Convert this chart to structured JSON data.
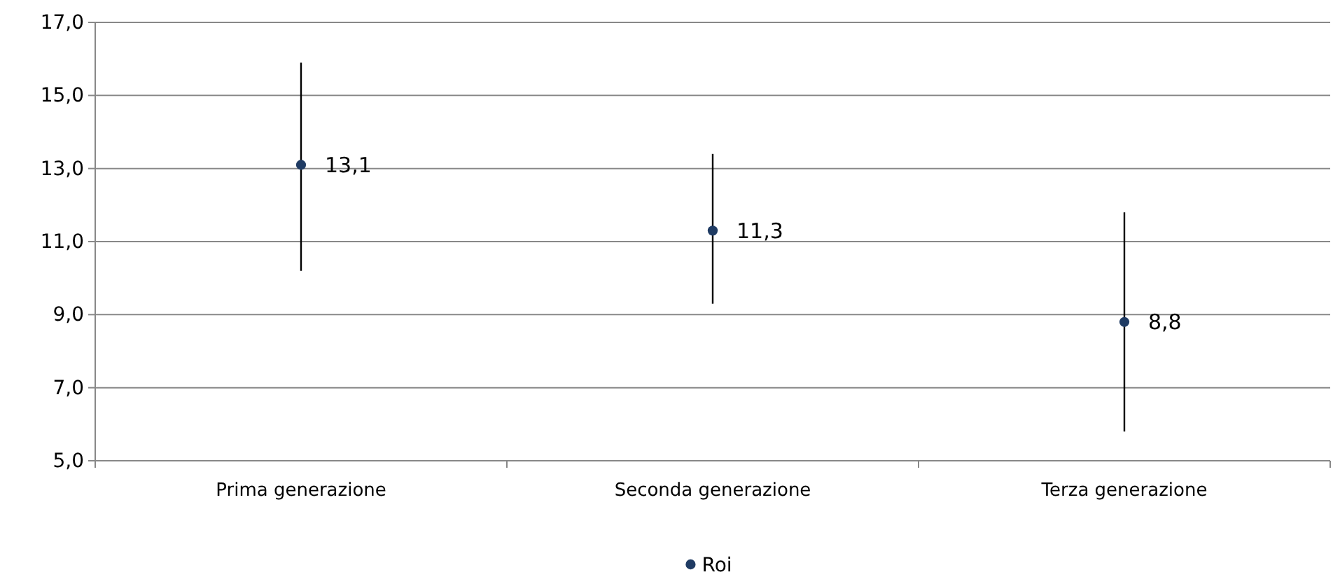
{
  "chart_data": {
    "type": "scatter",
    "categories": [
      "Prima generazione",
      "Seconda generazione",
      "Terza generazione"
    ],
    "series": [
      {
        "name": "Roi",
        "color": "#1f3b63",
        "values": [
          13.1,
          11.3,
          8.8
        ],
        "errors": [
          [
            10.2,
            15.9
          ],
          [
            9.3,
            13.4
          ],
          [
            5.8,
            11.8
          ]
        ],
        "value_labels": [
          "13,1",
          "11,3",
          "8,8"
        ]
      }
    ],
    "ylim": [
      5,
      17
    ],
    "yticks": [
      {
        "value": 5,
        "label": "5,0"
      },
      {
        "value": 7,
        "label": "7,0"
      },
      {
        "value": 9,
        "label": "9,0"
      },
      {
        "value": 11,
        "label": "11,0"
      },
      {
        "value": 13,
        "label": "13,0"
      },
      {
        "value": 15,
        "label": "15,0"
      },
      {
        "value": 17,
        "label": "17,0"
      }
    ],
    "grid": "y",
    "legend": "bottom",
    "marker": "circle"
  }
}
